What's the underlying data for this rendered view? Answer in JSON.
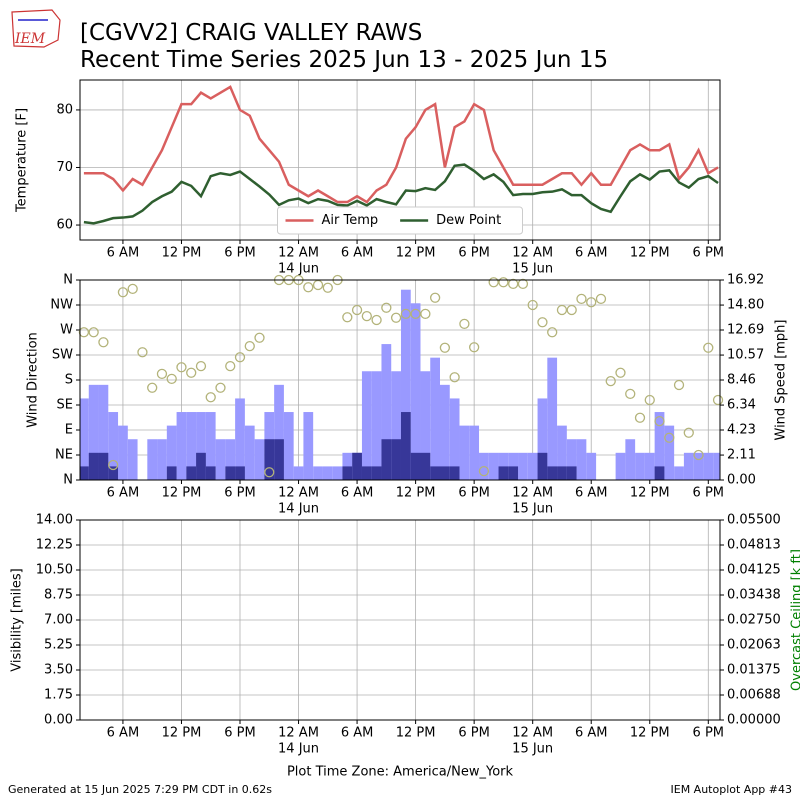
{
  "header": {
    "logo_text": "IEM",
    "title_line1": "[CGVV2] CRAIG VALLEY RAWS",
    "title_line2": "Recent Time Series 2025 Jun 13 - 2025 Jun 15"
  },
  "chart_data": [
    {
      "type": "line",
      "ylabel": "Temperature [F]",
      "grid": true,
      "legend": "lower center",
      "x": [
        2,
        3,
        4,
        5,
        6,
        7,
        8,
        9,
        10,
        11,
        12,
        13,
        14,
        15,
        16,
        17,
        18,
        19,
        20,
        21,
        22,
        23,
        24,
        25,
        26,
        27,
        28,
        29,
        30,
        31,
        32,
        33,
        34,
        35,
        36,
        37,
        38,
        39,
        40,
        41,
        42,
        43,
        44,
        45,
        46,
        47,
        48,
        49,
        50,
        51,
        52,
        53,
        54,
        55,
        56,
        57,
        58,
        59,
        60,
        61,
        62,
        63,
        64,
        65,
        66,
        67
      ],
      "xlim": [
        1.6,
        67.2
      ],
      "xticks": [
        {
          "value": 6,
          "label": "6 AM"
        },
        {
          "value": 12,
          "label": "12 PM"
        },
        {
          "value": 18,
          "label": "6 PM"
        },
        {
          "value": 24,
          "label": "12 AM"
        },
        {
          "value": 30,
          "label": "6 AM"
        },
        {
          "value": 36,
          "label": "12 PM"
        },
        {
          "value": 42,
          "label": "6 PM"
        },
        {
          "value": 48,
          "label": "12 AM"
        },
        {
          "value": 54,
          "label": "6 AM"
        },
        {
          "value": 60,
          "label": "12 PM"
        },
        {
          "value": 66,
          "label": "6 PM"
        }
      ],
      "xtick_dates": [
        {
          "value": 24,
          "label": "14 Jun"
        },
        {
          "value": 48,
          "label": "15 Jun"
        }
      ],
      "ylim": [
        57.4,
        85.2
      ],
      "yticks": [
        60,
        70,
        80
      ],
      "series": [
        {
          "name": "Air Temp",
          "color": "#d95f5f",
          "values": [
            69,
            69,
            69,
            68,
            66,
            68,
            67,
            70,
            73,
            77,
            81,
            81,
            83,
            82,
            83,
            84,
            80,
            79,
            75,
            73,
            71,
            67,
            66,
            65,
            66,
            65,
            64,
            64,
            65,
            64,
            66,
            67,
            70,
            75,
            77,
            80,
            81,
            70,
            77,
            78,
            81,
            80,
            73,
            70,
            67,
            67,
            67,
            67,
            68,
            69,
            69,
            67,
            69,
            67,
            67,
            70,
            73,
            74,
            73,
            73,
            74,
            68,
            70,
            73,
            69,
            70
          ]
        },
        {
          "name": "Dew Point",
          "color": "#2f5f30",
          "values": [
            60.5,
            60.3,
            60.7,
            61.2,
            61.3,
            61.5,
            62.5,
            64,
            65,
            65.8,
            67.5,
            66.8,
            65,
            68.5,
            69,
            68.7,
            69.3,
            68,
            66.7,
            65.3,
            63.5,
            64.3,
            64.6,
            63.8,
            64.5,
            64.2,
            63.5,
            63.4,
            64.2,
            63.4,
            64.5,
            64,
            63.6,
            66,
            65.9,
            66.4,
            66.1,
            67.6,
            70.3,
            70.5,
            69.4,
            68,
            68.8,
            67.5,
            65.2,
            65.4,
            65.4,
            65.7,
            65.8,
            66.2,
            65.2,
            65.2,
            63.8,
            62.8,
            62.3,
            65,
            67.6,
            68.8,
            67.9,
            69.3,
            69.5,
            67.4,
            66.5,
            68,
            68.5,
            67.3
          ]
        }
      ]
    },
    {
      "type": "wind",
      "ylabel": "Wind Direction",
      "y2label": "Wind Speed [mph]",
      "grid": true,
      "x": [
        2,
        3,
        4,
        5,
        6,
        7,
        8,
        9,
        10,
        11,
        12,
        13,
        14,
        15,
        16,
        17,
        18,
        19,
        20,
        21,
        22,
        23,
        24,
        25,
        26,
        27,
        28,
        29,
        30,
        31,
        32,
        33,
        34,
        35,
        36,
        37,
        38,
        39,
        40,
        41,
        42,
        43,
        44,
        45,
        46,
        47,
        48,
        49,
        50,
        51,
        52,
        53,
        54,
        55,
        56,
        57,
        58,
        59,
        60,
        61,
        62,
        63,
        64,
        65,
        66,
        67
      ],
      "xlim": [
        1.6,
        67.2
      ],
      "xticks": [
        {
          "value": 6,
          "label": "6 AM"
        },
        {
          "value": 12,
          "label": "12 PM"
        },
        {
          "value": 18,
          "label": "6 PM"
        },
        {
          "value": 24,
          "label": "12 AM"
        },
        {
          "value": 30,
          "label": "6 AM"
        },
        {
          "value": 36,
          "label": "12 PM"
        },
        {
          "value": 42,
          "label": "6 PM"
        },
        {
          "value": 48,
          "label": "12 AM"
        },
        {
          "value": 54,
          "label": "6 AM"
        },
        {
          "value": 60,
          "label": "12 PM"
        },
        {
          "value": 66,
          "label": "6 PM"
        }
      ],
      "xtick_dates": [
        {
          "value": 24,
          "label": "14 Jun"
        },
        {
          "value": 48,
          "label": "15 Jun"
        }
      ],
      "ylim": [
        0,
        360
      ],
      "yticks": [
        {
          "value": 0,
          "label": "N"
        },
        {
          "value": 45,
          "label": "NE"
        },
        {
          "value": 90,
          "label": "E"
        },
        {
          "value": 135,
          "label": "SE"
        },
        {
          "value": 180,
          "label": "S"
        },
        {
          "value": 225,
          "label": "SW"
        },
        {
          "value": 270,
          "label": "W"
        },
        {
          "value": 315,
          "label": "NW"
        },
        {
          "value": 360,
          "label": "N"
        }
      ],
      "y2lim": [
        0,
        16.92
      ],
      "y2ticks": [
        {
          "value": 0,
          "label": "0.00"
        },
        2.11,
        4.23,
        6.34,
        8.46,
        10.57,
        12.69,
        {
          "value": 14.8,
          "label": "14.80"
        },
        16.92
      ],
      "series": [
        {
          "type": "bar",
          "axis": "y2",
          "color": "#9999ff",
          "values": [
            6.9,
            8.05,
            8.05,
            5.75,
            4.6,
            3.45,
            0,
            3.45,
            3.45,
            4.6,
            5.75,
            5.75,
            5.75,
            5.75,
            3.45,
            3.45,
            6.9,
            4.6,
            3.45,
            5.75,
            8.05,
            5.75,
            1.15,
            5.75,
            1.15,
            1.15,
            1.15,
            2.3,
            2.3,
            9.2,
            9.2,
            11.5,
            9.2,
            16.1,
            14.95,
            9.2,
            10.35,
            8.05,
            6.9,
            4.6,
            4.6,
            2.3,
            2.3,
            2.3,
            2.3,
            2.3,
            2.3,
            6.9,
            10.35,
            4.6,
            3.45,
            3.45,
            2.3,
            0,
            0,
            2.3,
            3.45,
            2.3,
            2.3,
            5.75,
            4.6,
            1.15,
            2.3,
            2.3,
            2.3,
            2.3
          ]
        },
        {
          "type": "bar",
          "axis": "y2",
          "color": "#373799",
          "values": [
            1.15,
            2.3,
            2.3,
            1.15,
            0,
            0,
            0,
            0,
            0,
            1.15,
            0,
            1.15,
            2.3,
            1.15,
            0,
            1.15,
            1.15,
            0,
            0,
            3.45,
            3.45,
            0,
            0,
            0,
            0,
            0,
            0,
            1.15,
            2.3,
            1.15,
            1.15,
            3.45,
            3.45,
            5.75,
            2.3,
            2.3,
            1.15,
            1.15,
            1.15,
            0,
            0,
            0,
            0,
            1.15,
            1.15,
            0,
            0,
            2.3,
            1.15,
            1.15,
            1.15,
            0,
            0,
            0,
            0,
            0,
            0,
            0,
            0,
            1.15,
            0,
            0,
            0,
            0,
            0,
            0
          ]
        },
        {
          "type": "scatter",
          "color": "#b3b37a",
          "values": [
            266,
            266,
            248,
            27,
            338,
            344,
            230,
            166,
            191,
            182,
            203,
            193,
            205,
            149,
            166,
            205,
            221,
            241,
            256,
            14,
            360,
            360,
            360,
            347,
            351,
            346,
            360,
            293,
            306,
            295,
            288,
            310,
            292,
            299,
            299,
            299,
            328,
            238,
            185,
            281,
            239,
            16,
            356,
            356,
            353,
            353,
            315,
            284,
            266,
            306,
            306,
            326,
            320,
            326,
            178,
            193,
            155,
            112,
            144,
            106,
            76,
            171,
            85,
            45,
            238,
            144
          ]
        }
      ]
    },
    {
      "type": "empty",
      "ylabel": "Visibility [miles]",
      "y2label": "Overcast Ceiling [k ft]",
      "y2label_color": "#008000",
      "grid": true,
      "xlabel": "Plot Time Zone: America/New_York",
      "xlim": [
        1.6,
        67.2
      ],
      "xticks": [
        {
          "value": 6,
          "label": "6 AM"
        },
        {
          "value": 12,
          "label": "12 PM"
        },
        {
          "value": 18,
          "label": "6 PM"
        },
        {
          "value": 24,
          "label": "12 AM"
        },
        {
          "value": 30,
          "label": "6 AM"
        },
        {
          "value": 36,
          "label": "12 PM"
        },
        {
          "value": 42,
          "label": "6 PM"
        },
        {
          "value": 48,
          "label": "12 AM"
        },
        {
          "value": 54,
          "label": "6 AM"
        },
        {
          "value": 60,
          "label": "12 PM"
        },
        {
          "value": 66,
          "label": "6 PM"
        }
      ],
      "xtick_dates": [
        {
          "value": 24,
          "label": "14 Jun"
        },
        {
          "value": 48,
          "label": "15 Jun"
        }
      ],
      "ylim": [
        0,
        14
      ],
      "yticks": [
        {
          "value": 0,
          "label": "0.00"
        },
        1.75,
        {
          "value": 3.5,
          "label": "3.50"
        },
        5.25,
        {
          "value": 7,
          "label": "7.00"
        },
        8.75,
        {
          "value": 10.5,
          "label": "10.50"
        },
        12.25,
        {
          "value": 14,
          "label": "14.00"
        }
      ],
      "y2lim": [
        0,
        0.055
      ],
      "y2ticks": [
        {
          "value": 0,
          "label": "0.00000"
        },
        {
          "value": 0.006875,
          "label": "0.00688"
        },
        0.01375,
        {
          "value": 0.020625,
          "label": "0.02063"
        },
        {
          "value": 0.0275,
          "label": "0.02750"
        },
        {
          "value": 0.034375,
          "label": "0.03438"
        },
        0.04125,
        {
          "value": 0.048125,
          "label": "0.04813"
        },
        {
          "value": 0.055,
          "label": "0.05500"
        }
      ]
    }
  ],
  "footer": {
    "left": "Generated at 15 Jun 2025 7:29 PM CDT in 0.62s",
    "right": "IEM Autoplot App #43"
  }
}
